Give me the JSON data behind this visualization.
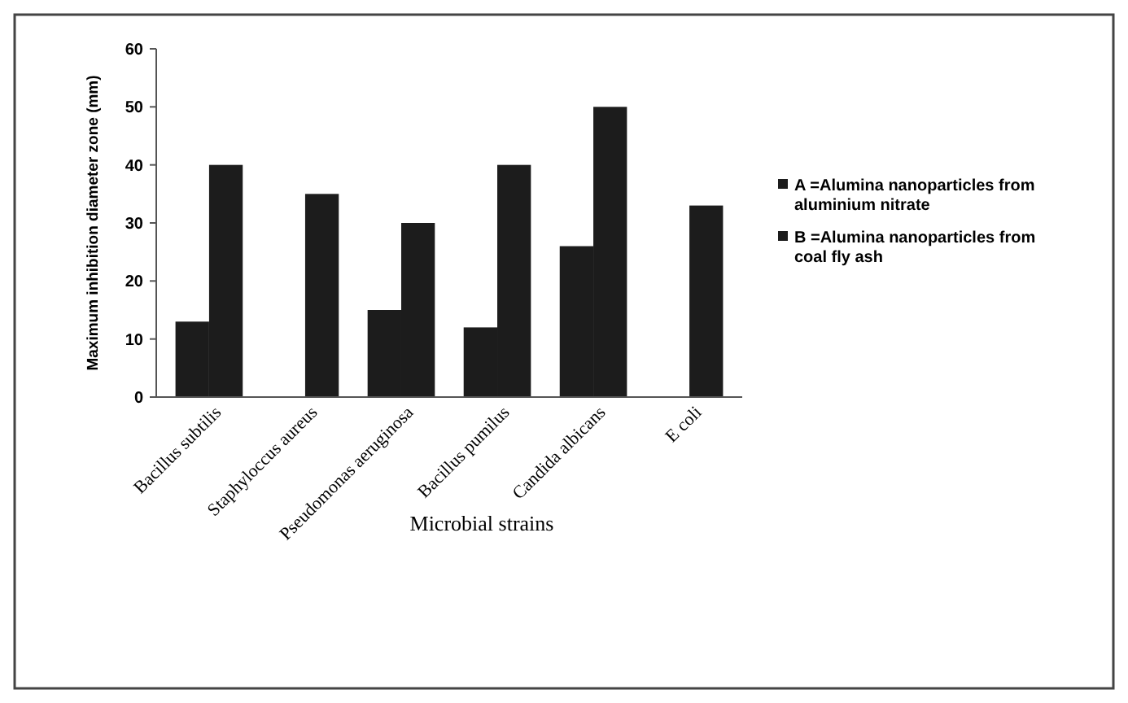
{
  "chart_data": {
    "type": "bar",
    "xlabel": "Microbial strains",
    "ylabel": "Maximum inhibition diameter zone (mm)",
    "categories": [
      "Bacillus subtilis",
      "Staphyloccus aureus",
      "Pseudomonas aeruginosa",
      "Bacillus pumilus",
      "Candida albicans",
      "E coli"
    ],
    "series": [
      {
        "name": "A =Alumina nanoparticles from aluminium nitrate",
        "color": "#1c1c1c",
        "values": [
          13,
          0,
          15,
          12,
          26,
          0
        ]
      },
      {
        "name": "B =Alumina nanoparticles from coal fly ash",
        "color": "#1c1c1c",
        "values": [
          40,
          35,
          30,
          40,
          50,
          33
        ]
      }
    ],
    "ylim": [
      0,
      60
    ],
    "yticks": [
      0,
      10,
      20,
      30,
      40,
      50,
      60
    ],
    "legend": "right"
  }
}
